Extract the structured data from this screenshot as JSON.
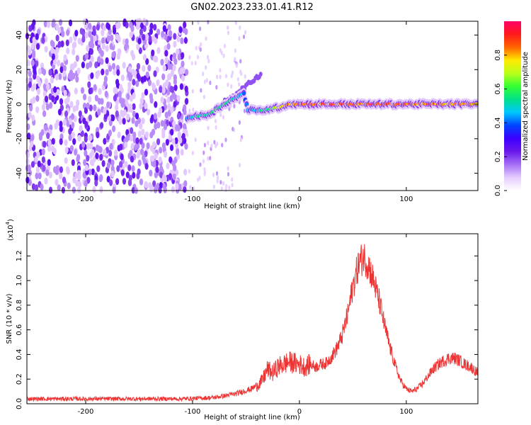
{
  "title": "GN02.2023.233.01.41.R12",
  "colors": {
    "snr_line": "#ee3333",
    "background": "#ffffff",
    "axis": "#000000",
    "colormap_stops": [
      "#ffffff",
      "#e6ccff",
      "#a56ef5",
      "#6a18ec",
      "#3c00ff",
      "#0044ff",
      "#00c8ff",
      "#00e08a",
      "#33ff33",
      "#b8ff1a",
      "#ffea00",
      "#ff6600",
      "#ff1a1a",
      "#ff0066"
    ]
  },
  "chart_data": [
    {
      "type": "heatmap",
      "title": "GN02.2023.233.01.41.R12",
      "xlabel": "Height of straight line (km)",
      "ylabel": "Frequency (Hz)",
      "xlim": [
        -255,
        167
      ],
      "ylim": [
        -50,
        48
      ],
      "x_ticks": [
        -200,
        -100,
        0,
        100
      ],
      "x_tick_labels": [
        "-200",
        "-100",
        "0",
        "100"
      ],
      "y_ticks": [
        -40,
        -20,
        0,
        20,
        40
      ],
      "y_tick_labels": [
        "-40",
        "-20",
        "0",
        "20",
        "40"
      ],
      "grid": false,
      "colorbar": {
        "label": "Normalized spectral amplitude",
        "range": [
          0,
          1
        ],
        "ticks": [
          0.0,
          0.2,
          0.4,
          0.6,
          0.8
        ],
        "tick_labels": [
          "0.0",
          "0.2",
          "0.4",
          "0.6",
          "0.8"
        ]
      },
      "features": {
        "noise_region": {
          "x_start": -255,
          "x_end": -50,
          "dense_until": -105,
          "amplitude": 0.18
        },
        "ridge": [
          {
            "x": -105,
            "y": -8,
            "amplitude": 0.45
          },
          {
            "x": -95,
            "y": -7,
            "amplitude": 0.55
          },
          {
            "x": -85,
            "y": -6,
            "amplitude": 0.6
          },
          {
            "x": -75,
            "y": -2,
            "amplitude": 0.6
          },
          {
            "x": -65,
            "y": 2,
            "amplitude": 0.55
          },
          {
            "x": -58,
            "y": 4,
            "amplitude": 0.5
          },
          {
            "x": -52,
            "y": 6,
            "amplitude": 0.45
          },
          {
            "x": -48,
            "y": -3,
            "amplitude": 0.45
          },
          {
            "x": -40,
            "y": -4,
            "amplitude": 0.5
          },
          {
            "x": -30,
            "y": -3,
            "amplitude": 0.6
          },
          {
            "x": -20,
            "y": -2,
            "amplitude": 0.75
          },
          {
            "x": -10,
            "y": 0,
            "amplitude": 0.85
          },
          {
            "x": 0,
            "y": 0,
            "amplitude": 0.9
          },
          {
            "x": 25,
            "y": 0,
            "amplitude": 0.9
          },
          {
            "x": 50,
            "y": 0,
            "amplitude": 0.92
          },
          {
            "x": 75,
            "y": 0,
            "amplitude": 0.9
          },
          {
            "x": 100,
            "y": 0,
            "amplitude": 0.9
          },
          {
            "x": 125,
            "y": 0,
            "amplitude": 0.88
          },
          {
            "x": 150,
            "y": 0,
            "amplitude": 0.88
          },
          {
            "x": 167,
            "y": 0,
            "amplitude": 0.85
          }
        ],
        "upper_branch": [
          {
            "x": -70,
            "y": 2
          },
          {
            "x": -55,
            "y": 8
          },
          {
            "x": -45,
            "y": 13
          },
          {
            "x": -35,
            "y": 18
          }
        ]
      }
    },
    {
      "type": "line",
      "xlabel": "Height of straight line (km)",
      "ylabel": "SNR (10 * v/v)",
      "y_multiplier_label": "(x10",
      "y_multiplier_exponent": "4",
      "y_multiplier_close": ")",
      "xlim": [
        -255,
        167
      ],
      "ylim": [
        0,
        1.38
      ],
      "x_ticks": [
        -200,
        -100,
        0,
        100
      ],
      "x_tick_labels": [
        "-200",
        "-100",
        "0",
        "100"
      ],
      "y_ticks": [
        0.0,
        0.2,
        0.4,
        0.6,
        0.8,
        1.0,
        1.2
      ],
      "y_tick_labels": [
        "0.0",
        "0.2",
        "0.4",
        "0.6",
        "0.8",
        "1.0",
        "1.2"
      ],
      "grid": false,
      "series": [
        {
          "color": "#ee3333",
          "x": [
            -255,
            -200,
            -150,
            -110,
            -80,
            -60,
            -45,
            -35,
            -30,
            -25,
            -20,
            -15,
            -10,
            -5,
            0,
            5,
            10,
            15,
            20,
            25,
            30,
            35,
            40,
            45,
            50,
            55,
            60,
            65,
            70,
            75,
            80,
            85,
            90,
            95,
            100,
            105,
            110,
            115,
            120,
            125,
            130,
            135,
            140,
            145,
            150,
            155,
            160,
            167
          ],
          "values": [
            0.04,
            0.04,
            0.04,
            0.04,
            0.05,
            0.08,
            0.12,
            0.18,
            0.28,
            0.25,
            0.3,
            0.32,
            0.34,
            0.33,
            0.32,
            0.3,
            0.32,
            0.3,
            0.32,
            0.33,
            0.38,
            0.45,
            0.55,
            0.72,
            0.95,
            1.12,
            1.2,
            1.12,
            0.98,
            0.82,
            0.62,
            0.45,
            0.3,
            0.18,
            0.12,
            0.1,
            0.12,
            0.16,
            0.22,
            0.28,
            0.32,
            0.35,
            0.37,
            0.37,
            0.35,
            0.32,
            0.3,
            0.25
          ]
        }
      ]
    }
  ]
}
